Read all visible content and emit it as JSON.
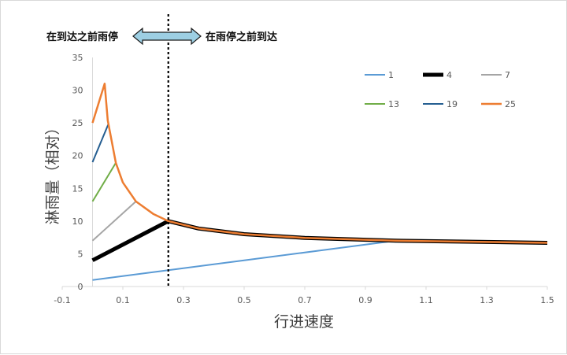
{
  "chart_data": {
    "type": "line",
    "xlabel": "行进速度",
    "ylabel": "淋雨量（相对）",
    "xlim": [
      -0.1,
      1.5
    ],
    "ylim": [
      0,
      35
    ],
    "xticks": [
      "-0.1",
      "0.1",
      "0.3",
      "0.5",
      "0.7",
      "0.9",
      "1.1",
      "1.3",
      "1.5"
    ],
    "yticks": [
      "0",
      "5",
      "10",
      "15",
      "20",
      "25",
      "30",
      "35"
    ],
    "grid": false,
    "legend_position": "top-right",
    "annotation": {
      "left_text": "在到达之前雨停",
      "right_text": "在雨停之前到达",
      "divider_x": 0.25
    },
    "series": [
      {
        "name": "1",
        "color": "#5b9bd5",
        "width": 2,
        "x": [
          0,
          0.25,
          0.5,
          0.75,
          1.0,
          1.5
        ],
        "y": [
          1,
          2.5,
          4.0,
          5.5,
          7.0,
          6.67
        ]
      },
      {
        "name": "4",
        "color": "#000000",
        "width": 5,
        "x": [
          0,
          0.25,
          0.35,
          0.5,
          0.7,
          1.0,
          1.5
        ],
        "y": [
          4,
          10,
          8.86,
          8.0,
          7.43,
          7.0,
          6.67
        ]
      },
      {
        "name": "7",
        "color": "#a5a5a5",
        "width": 2,
        "x": [
          0,
          0.143
        ],
        "y": [
          7,
          13
        ]
      },
      {
        "name": "13",
        "color": "#70ad47",
        "width": 2,
        "x": [
          0,
          0.077
        ],
        "y": [
          13,
          18.9
        ]
      },
      {
        "name": "19",
        "color": "#255e91",
        "width": 2,
        "x": [
          0,
          0.053
        ],
        "y": [
          19,
          24.9
        ]
      },
      {
        "name": "25",
        "color": "#ed7d31",
        "width": 2.5,
        "x": [
          0,
          0.04,
          0.05,
          0.077,
          0.1,
          0.143,
          0.2,
          0.25,
          0.35,
          0.5,
          0.7,
          1.0,
          1.5
        ],
        "y": [
          25,
          31,
          25.4,
          18.9,
          15.9,
          13.0,
          11.1,
          10.0,
          8.86,
          8.0,
          7.43,
          7.0,
          6.67
        ]
      }
    ]
  }
}
